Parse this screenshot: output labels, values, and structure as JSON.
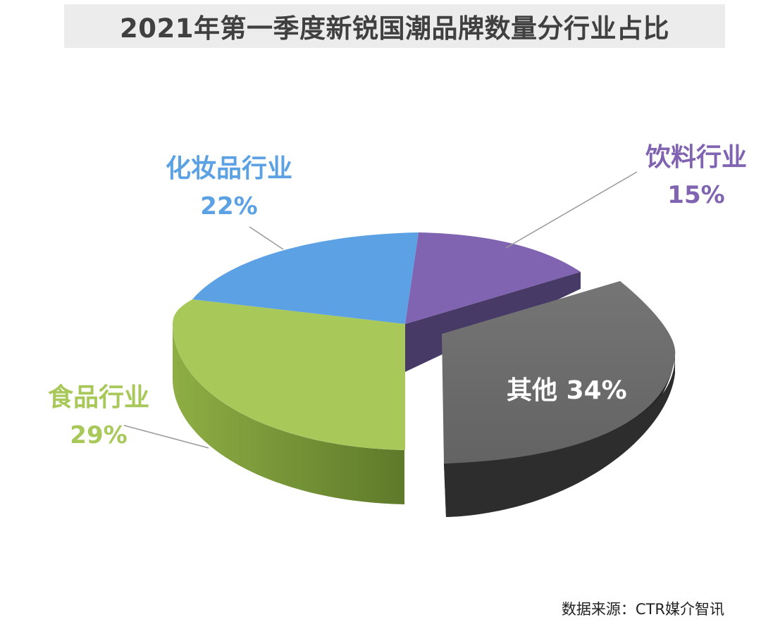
{
  "title": "2021年第一季度新锐国潮品牌数量分行业占比",
  "source": "数据来源：CTR媒介智讯",
  "chart_data": {
    "type": "pie",
    "style": "3d-exploded",
    "title": "2021年第一季度新锐国潮品牌数量分行业占比",
    "slices": [
      {
        "name": "化妆品行业",
        "value": 22,
        "label": "22%",
        "color": "#5ba1e3"
      },
      {
        "name": "饮料行业",
        "value": 15,
        "label": "15%",
        "color": "#8064b2"
      },
      {
        "name": "其他",
        "value": 34,
        "label": "34%",
        "color": "#6b6b6b",
        "exploded": true
      },
      {
        "name": "食品行业",
        "value": 29,
        "label": "29%",
        "color": "#a8c95a"
      }
    ]
  }
}
